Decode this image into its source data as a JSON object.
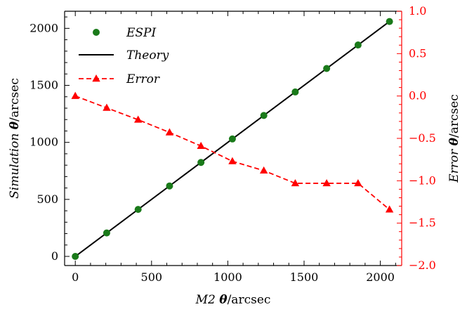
{
  "chart_data": {
    "type": "line",
    "title": "",
    "x": [
      0,
      206,
      412,
      618,
      824,
      1030,
      1236,
      1442,
      1648,
      1854,
      2060
    ],
    "xlabel": "M2 θ/arcsec",
    "xlabel_parts": {
      "italic": "M2",
      "symbol": "θ",
      "unit": "/arcsec"
    },
    "xlim": [
      -70,
      2140
    ],
    "xticks": [
      0,
      500,
      1000,
      1500,
      2000
    ],
    "ylabel": "Simulation θ/arcsec",
    "ylabel_parts": {
      "italic": "Simulation",
      "symbol": "θ",
      "unit": "/arcsec"
    },
    "ylim": [
      -80,
      2150
    ],
    "yticks": [
      0,
      500,
      1000,
      1500,
      2000
    ],
    "y2label": "Error θ/arcsec",
    "y2label_parts": {
      "italic": "Error",
      "symbol": "θ",
      "unit": "/arcsec"
    },
    "y2lim": [
      -2.0,
      1.0
    ],
    "y2ticks": [
      -2.0,
      -1.5,
      -1.0,
      -0.5,
      0.0,
      0.5,
      1.0
    ],
    "y2tick_labels": [
      "−2.0",
      "−1.5",
      "−1.0",
      "−0.5",
      "0.0",
      "0.5",
      "1.0"
    ],
    "series": [
      {
        "name": "ESPI",
        "axis": "left",
        "style": "markers",
        "color": "#1a7a1a",
        "values": [
          0,
          206,
          412,
          618,
          824,
          1030,
          1236,
          1442,
          1648,
          1854,
          2060
        ]
      },
      {
        "name": "Theory",
        "axis": "left",
        "style": "line",
        "color": "#000000",
        "x": [
          0,
          2060
        ],
        "values": [
          0,
          2060
        ]
      },
      {
        "name": "Error",
        "axis": "right",
        "style": "dashed-triangles",
        "color": "#ff0000",
        "values": [
          0.0,
          -0.14,
          -0.28,
          -0.43,
          -0.59,
          -0.77,
          -0.88,
          -1.03,
          -1.03,
          -1.03,
          -1.34
        ]
      }
    ],
    "legend": {
      "position": "top-left",
      "entries": [
        "ESPI",
        "Theory",
        "Error"
      ]
    },
    "colors": {
      "left_axis": "#000000",
      "right_axis": "#ff0000"
    },
    "grid": false
  }
}
